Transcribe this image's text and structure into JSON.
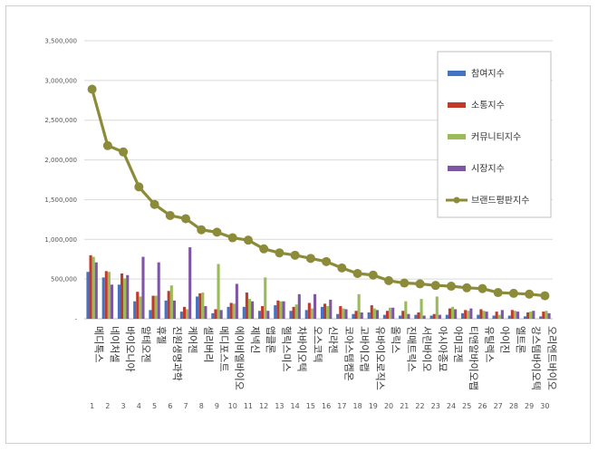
{
  "chart_data": {
    "type": "bar",
    "title": "",
    "xlabel": "",
    "ylabel": "",
    "ylim": [
      0,
      3500000
    ],
    "yticks": [
      "-",
      "500,000",
      "1,000,000",
      "1,500,000",
      "2,000,000",
      "2,500,000",
      "3,000,000",
      "3,500,000"
    ],
    "grid": true,
    "legend_position": "right",
    "categories": [
      "메디톡스",
      "네이처셀",
      "바이오니아",
      "알테오젠",
      "휴젤",
      "진원생명과학",
      "케어젠",
      "셀리버리",
      "메디포스트",
      "에이비엘바이오",
      "제넥신",
      "앱클론",
      "헬릭스미스",
      "차바이오텍",
      "오스코텍",
      "신라젠",
      "코아스템켐온",
      "고바이오랩",
      "유바이오로직스",
      "올릭스",
      "진매트릭스",
      "서린바이오",
      "아시아종묘",
      "아미코젠",
      "티앤알바이오팹",
      "유틸렉스",
      "아이진",
      "엘트론",
      "강스템바이오텍",
      "오리엔트바이오"
    ],
    "ranks": [
      "1",
      "2",
      "3",
      "4",
      "5",
      "6",
      "7",
      "8",
      "9",
      "10",
      "11",
      "12",
      "13",
      "14",
      "15",
      "16",
      "17",
      "18",
      "19",
      "20",
      "21",
      "22",
      "23",
      "24",
      "25",
      "26",
      "27",
      "28",
      "29",
      "30"
    ],
    "series": [
      {
        "name": "참여지수",
        "kind": "bar",
        "color": "#4472c4",
        "values": [
          590000,
          520000,
          430000,
          220000,
          110000,
          230000,
          90000,
          280000,
          70000,
          150000,
          150000,
          100000,
          170000,
          100000,
          110000,
          150000,
          60000,
          60000,
          80000,
          50000,
          40000,
          50000,
          40000,
          50000,
          70000,
          50000,
          40000,
          40000,
          30000,
          30000
        ]
      },
      {
        "name": "소통지수",
        "kind": "bar",
        "color": "#c0392b",
        "values": [
          800000,
          600000,
          570000,
          340000,
          290000,
          350000,
          150000,
          320000,
          120000,
          200000,
          330000,
          160000,
          230000,
          150000,
          200000,
          190000,
          160000,
          100000,
          170000,
          100000,
          100000,
          80000,
          60000,
          130000,
          110000,
          120000,
          90000,
          110000,
          80000,
          90000
        ]
      },
      {
        "name": "커뮤니티지수",
        "kind": "bar",
        "color": "#9bbb59",
        "values": [
          780000,
          590000,
          510000,
          280000,
          290000,
          420000,
          120000,
          330000,
          690000,
          190000,
          250000,
          520000,
          220000,
          180000,
          130000,
          160000,
          130000,
          310000,
          130000,
          140000,
          220000,
          250000,
          280000,
          150000,
          100000,
          100000,
          50000,
          100000,
          90000,
          100000
        ]
      },
      {
        "name": "시장지수",
        "kind": "bar",
        "color": "#7f56a6",
        "values": [
          710000,
          430000,
          550000,
          780000,
          710000,
          230000,
          900000,
          160000,
          110000,
          440000,
          220000,
          100000,
          220000,
          310000,
          310000,
          240000,
          120000,
          80000,
          110000,
          140000,
          60000,
          40000,
          50000,
          120000,
          130000,
          90000,
          110000,
          90000,
          100000,
          70000
        ]
      },
      {
        "name": "브랜드평판지수",
        "kind": "line",
        "color": "#8b8b3a",
        "values": [
          2890000,
          2180000,
          2100000,
          1660000,
          1440000,
          1300000,
          1260000,
          1120000,
          1090000,
          1020000,
          990000,
          880000,
          830000,
          800000,
          760000,
          720000,
          640000,
          570000,
          550000,
          480000,
          450000,
          440000,
          420000,
          410000,
          390000,
          380000,
          330000,
          320000,
          310000,
          290000
        ]
      }
    ]
  }
}
